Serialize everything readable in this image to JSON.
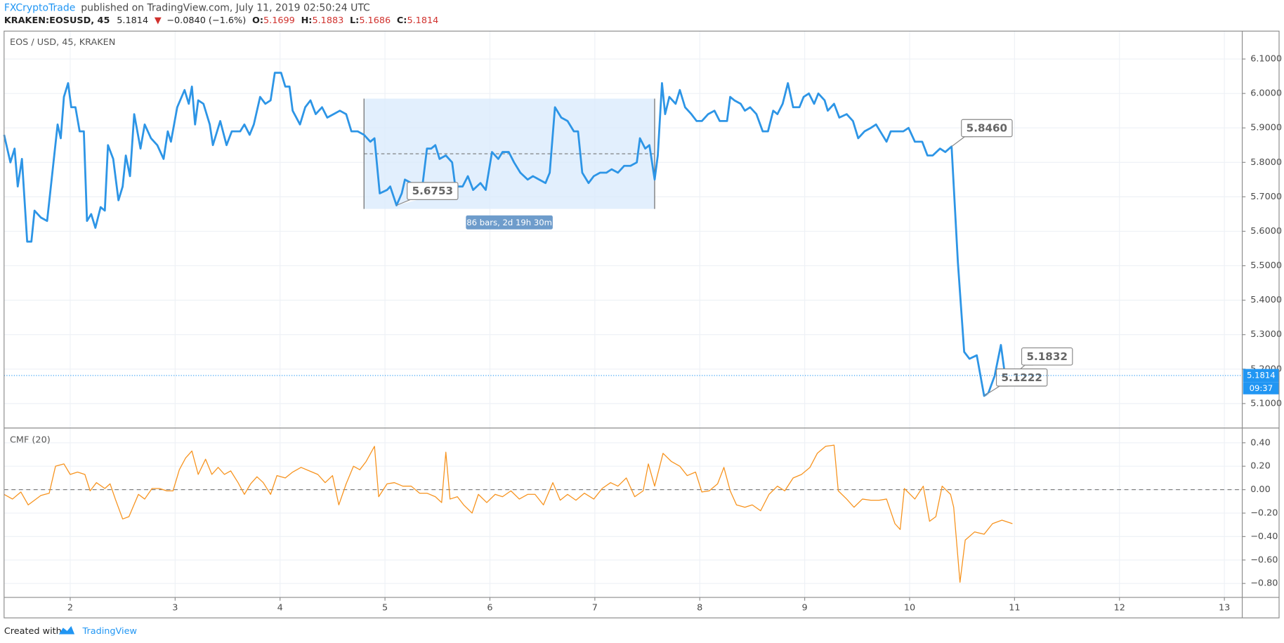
{
  "header": {
    "publisher": "FXCryptoTrade",
    "published": "published on TradingView.com, July 11, 2019 02:50:24 UTC",
    "symbol": "KRAKEN:EOSUSD, 45",
    "last": 5.1814,
    "arrow": "▼",
    "change": "−0.0840 (−1.6%)",
    "ohlc": [
      {
        "label": "O:",
        "value": 5.1699
      },
      {
        "label": "H:",
        "value": 5.1883
      },
      {
        "label": "L:",
        "value": 5.1686
      },
      {
        "label": "C:",
        "value": 5.1814
      }
    ]
  },
  "footer": {
    "text": "Created with",
    "brand": "TradingView"
  },
  "chart_data": [
    {
      "type": "line",
      "title": "EOS / USD, 45, KRAKEN",
      "xlim": [
        1.37,
        13.17
      ],
      "xticks": [
        2,
        3,
        4,
        5,
        6,
        7,
        8,
        9,
        10,
        11,
        12,
        13
      ],
      "ylim": [
        5.029,
        6.181
      ],
      "yticks": [
        {
          "value": 5.1,
          "label": "5.1000"
        },
        {
          "value": 5.2,
          "label": "5.2000"
        },
        {
          "value": 5.3,
          "label": "5.3000"
        },
        {
          "value": 5.4,
          "label": "5.4000"
        },
        {
          "value": 5.5,
          "label": "5.5000"
        },
        {
          "value": 5.6,
          "label": "5.6000"
        },
        {
          "value": 5.7,
          "label": "5.7000"
        },
        {
          "value": 5.8,
          "label": "5.8000"
        },
        {
          "value": 5.9,
          "label": "5.9000"
        },
        {
          "value": 6.0,
          "label": "6.0000"
        },
        {
          "value": 6.1,
          "label": "6.1000"
        }
      ],
      "grid": true,
      "last_price": 5.1814,
      "countdown": "09:37",
      "series": [
        {
          "name": "EOS / USD",
          "color": "#2d95e6",
          "x": [
            1.37,
            1.43,
            1.47,
            1.5,
            1.54,
            1.59,
            1.63,
            1.66,
            1.72,
            1.78,
            1.88,
            1.91,
            1.94,
            1.98,
            2.01,
            2.05,
            2.09,
            2.13,
            2.16,
            2.2,
            2.24,
            2.29,
            2.33,
            2.36,
            2.41,
            2.46,
            2.5,
            2.53,
            2.57,
            2.61,
            2.67,
            2.71,
            2.77,
            2.83,
            2.89,
            2.93,
            2.96,
            3.02,
            3.09,
            3.13,
            3.16,
            3.19,
            3.22,
            3.27,
            3.33,
            3.36,
            3.43,
            3.49,
            3.54,
            3.62,
            3.66,
            3.71,
            3.75,
            3.81,
            3.86,
            3.91,
            3.95,
            4.01,
            4.05,
            4.09,
            4.12,
            4.19,
            4.24,
            4.29,
            4.34,
            4.4,
            4.45,
            4.51,
            4.57,
            4.63,
            4.68,
            4.74,
            4.8,
            4.86,
            4.9,
            4.95,
            5.02,
            5.05,
            5.11,
            5.16,
            5.19,
            5.25,
            5.3,
            5.36,
            5.4,
            5.44,
            5.48,
            5.52,
            5.58,
            5.64,
            5.67,
            5.74,
            5.79,
            5.84,
            5.91,
            5.96,
            6.02,
            6.08,
            6.12,
            6.18,
            6.23,
            6.29,
            6.36,
            6.41,
            6.47,
            6.53,
            6.57,
            6.62,
            6.68,
            6.74,
            6.8,
            6.84,
            6.88,
            6.94,
            6.99,
            7.05,
            7.11,
            7.16,
            7.22,
            7.28,
            7.34,
            7.4,
            7.43,
            7.48,
            7.52,
            7.57,
            7.6,
            7.64,
            7.67,
            7.71,
            7.77,
            7.81,
            7.86,
            7.92,
            7.97,
            8.02,
            8.08,
            8.14,
            8.19,
            8.26,
            8.29,
            8.33,
            8.39,
            8.43,
            8.48,
            8.54,
            8.6,
            8.65,
            8.7,
            8.74,
            8.79,
            8.84,
            8.89,
            8.95,
            8.99,
            9.04,
            9.09,
            9.13,
            9.19,
            9.22,
            9.28,
            9.33,
            9.4,
            9.46,
            9.51,
            9.57,
            9.63,
            9.68,
            9.74,
            9.78,
            9.82,
            9.88,
            9.94,
            9.99,
            10.05,
            10.12,
            10.17,
            10.22,
            10.29,
            10.34,
            10.4,
            10.46,
            10.52,
            10.57,
            10.64,
            10.71,
            10.75,
            10.81,
            10.87,
            10.91,
            10.95,
            10.99
          ],
          "values": [
            5.88,
            5.8,
            5.84,
            5.73,
            5.81,
            5.57,
            5.57,
            5.66,
            5.64,
            5.63,
            5.91,
            5.87,
            5.99,
            6.03,
            5.96,
            5.96,
            5.89,
            5.89,
            5.63,
            5.65,
            5.61,
            5.67,
            5.66,
            5.85,
            5.81,
            5.69,
            5.73,
            5.82,
            5.76,
            5.94,
            5.84,
            5.91,
            5.87,
            5.85,
            5.81,
            5.89,
            5.86,
            5.96,
            6.01,
            5.97,
            6.02,
            5.91,
            5.98,
            5.97,
            5.91,
            5.85,
            5.92,
            5.85,
            5.89,
            5.89,
            5.91,
            5.88,
            5.91,
            5.99,
            5.97,
            5.98,
            6.06,
            6.06,
            6.02,
            6.02,
            5.95,
            5.91,
            5.96,
            5.98,
            5.94,
            5.96,
            5.93,
            5.94,
            5.95,
            5.94,
            5.89,
            5.89,
            5.88,
            5.86,
            5.87,
            5.71,
            5.72,
            5.73,
            5.6753,
            5.71,
            5.75,
            5.74,
            5.7,
            5.74,
            5.84,
            5.84,
            5.85,
            5.81,
            5.82,
            5.8,
            5.73,
            5.73,
            5.76,
            5.72,
            5.74,
            5.72,
            5.83,
            5.81,
            5.83,
            5.83,
            5.8,
            5.77,
            5.75,
            5.76,
            5.75,
            5.74,
            5.77,
            5.96,
            5.93,
            5.92,
            5.89,
            5.89,
            5.77,
            5.74,
            5.76,
            5.77,
            5.77,
            5.78,
            5.77,
            5.79,
            5.79,
            5.8,
            5.87,
            5.84,
            5.85,
            5.75,
            5.82,
            6.03,
            5.94,
            5.99,
            5.97,
            6.01,
            5.96,
            5.94,
            5.92,
            5.92,
            5.94,
            5.95,
            5.92,
            5.92,
            5.99,
            5.98,
            5.97,
            5.95,
            5.96,
            5.94,
            5.89,
            5.89,
            5.95,
            5.94,
            5.97,
            6.03,
            5.96,
            5.96,
            5.99,
            6.0,
            5.97,
            6.0,
            5.98,
            5.95,
            5.97,
            5.93,
            5.94,
            5.92,
            5.87,
            5.89,
            5.9,
            5.91,
            5.88,
            5.86,
            5.89,
            5.89,
            5.89,
            5.9,
            5.86,
            5.86,
            5.82,
            5.82,
            5.84,
            5.83,
            5.846,
            5.51,
            5.25,
            5.23,
            5.24,
            5.1222,
            5.13,
            5.18,
            5.27,
            5.18,
            5.18,
            5.1832
          ]
        }
      ],
      "annotations": [
        {
          "x": 10.4,
          "value": 5.846,
          "label": "5.8460"
        },
        {
          "x": 5.11,
          "value": 5.6753,
          "label": "5.6753"
        },
        {
          "x": 10.99,
          "value": 5.1832,
          "label": "5.1832"
        },
        {
          "x": 10.71,
          "value": 5.1222,
          "label": "5.1222"
        }
      ],
      "range": {
        "x": [
          4.8,
          7.57
        ],
        "y": [
          5.665,
          5.985
        ],
        "label": "86 bars, 2d 19h 30m"
      }
    },
    {
      "type": "line",
      "title": "CMF (20)",
      "xlim": [
        1.37,
        13.17
      ],
      "xticks": [
        2,
        3,
        4,
        5,
        6,
        7,
        8,
        9,
        10,
        11,
        12,
        13
      ],
      "ylim": [
        -0.919,
        0.526
      ],
      "yticks": [
        {
          "value": 0.4,
          "label": "0.40"
        },
        {
          "value": 0.2,
          "label": "0.20"
        },
        {
          "value": 0,
          "label": "0.00"
        },
        {
          "value": -0.2,
          "label": "−0.20"
        },
        {
          "value": -0.4,
          "label": "−0.40"
        },
        {
          "value": -0.6,
          "label": "−0.60"
        },
        {
          "value": -0.8,
          "label": "−0.80"
        }
      ],
      "grid": true,
      "series": [
        {
          "name": "CMF",
          "color": "#f7931e",
          "x": [
            1.37,
            1.45,
            1.53,
            1.6,
            1.72,
            1.8,
            1.86,
            1.94,
            2.0,
            2.07,
            2.14,
            2.19,
            2.25,
            2.33,
            2.38,
            2.43,
            2.5,
            2.56,
            2.65,
            2.71,
            2.78,
            2.85,
            2.92,
            2.98,
            3.04,
            3.1,
            3.16,
            3.22,
            3.29,
            3.35,
            3.41,
            3.47,
            3.53,
            3.6,
            3.66,
            3.72,
            3.78,
            3.84,
            3.91,
            3.97,
            4.05,
            4.12,
            4.2,
            4.28,
            4.36,
            4.43,
            4.5,
            4.56,
            4.63,
            4.7,
            4.76,
            4.82,
            4.9,
            4.94,
            5.02,
            5.09,
            5.17,
            5.25,
            5.33,
            5.4,
            5.48,
            5.54,
            5.58,
            5.62,
            5.69,
            5.75,
            5.83,
            5.89,
            5.97,
            6.05,
            6.12,
            6.2,
            6.28,
            6.36,
            6.43,
            6.51,
            6.6,
            6.67,
            6.74,
            6.82,
            6.9,
            6.99,
            7.07,
            7.15,
            7.22,
            7.3,
            7.38,
            7.46,
            7.51,
            7.57,
            7.65,
            7.73,
            7.81,
            7.88,
            7.96,
            8.02,
            8.09,
            8.17,
            8.23,
            8.29,
            8.35,
            8.43,
            8.5,
            8.58,
            8.66,
            8.74,
            8.81,
            8.89,
            8.97,
            9.05,
            9.12,
            9.2,
            9.28,
            9.32,
            9.4,
            9.47,
            9.55,
            9.63,
            9.71,
            9.78,
            9.86,
            9.91,
            9.95,
            10.05,
            10.13,
            10.19,
            10.25,
            10.31,
            10.39,
            10.42,
            10.48,
            10.53,
            10.62,
            10.71,
            10.79,
            10.88,
            10.98
          ],
          "values": [
            -0.04,
            -0.08,
            -0.02,
            -0.13,
            -0.05,
            -0.03,
            0.2,
            0.22,
            0.13,
            0.15,
            0.13,
            -0.01,
            0.06,
            0.01,
            0.05,
            -0.08,
            -0.25,
            -0.23,
            -0.04,
            -0.08,
            0.01,
            0.01,
            -0.01,
            -0.01,
            0.17,
            0.27,
            0.33,
            0.13,
            0.26,
            0.13,
            0.19,
            0.13,
            0.16,
            0.06,
            -0.04,
            0.05,
            0.11,
            0.06,
            -0.04,
            0.12,
            0.1,
            0.15,
            0.19,
            0.16,
            0.13,
            0.06,
            0.12,
            -0.13,
            0.05,
            0.2,
            0.17,
            0.24,
            0.37,
            -0.06,
            0.05,
            0.06,
            0.03,
            0.03,
            -0.03,
            -0.03,
            -0.06,
            -0.11,
            0.32,
            -0.08,
            -0.06,
            -0.13,
            -0.2,
            -0.04,
            -0.11,
            -0.04,
            -0.06,
            -0.01,
            -0.08,
            -0.04,
            -0.04,
            -0.13,
            0.06,
            -0.09,
            -0.04,
            -0.09,
            -0.03,
            -0.08,
            0.01,
            0.06,
            0.03,
            0.1,
            -0.06,
            -0.01,
            0.22,
            0.03,
            0.31,
            0.24,
            0.2,
            0.12,
            0.15,
            -0.02,
            -0.01,
            0.05,
            0.19,
            -0.01,
            -0.13,
            -0.15,
            -0.13,
            -0.18,
            -0.04,
            0.03,
            -0.01,
            0.1,
            0.13,
            0.19,
            0.31,
            0.37,
            0.38,
            -0.01,
            -0.08,
            -0.15,
            -0.08,
            -0.09,
            -0.09,
            -0.08,
            -0.29,
            -0.34,
            0.01,
            -0.08,
            0.03,
            -0.27,
            -0.23,
            0.03,
            -0.04,
            -0.15,
            -0.79,
            -0.43,
            -0.36,
            -0.38,
            -0.29,
            -0.26,
            -0.29
          ]
        }
      ]
    }
  ]
}
